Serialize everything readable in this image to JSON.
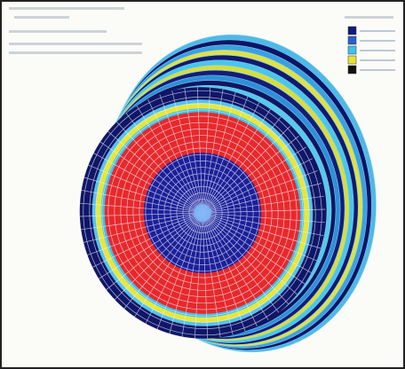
{
  "legend": {
    "colors": [
      "#141a7a",
      "#2a5fd0",
      "#3fc2e8",
      "#e6e23a",
      "#111111"
    ]
  }
}
